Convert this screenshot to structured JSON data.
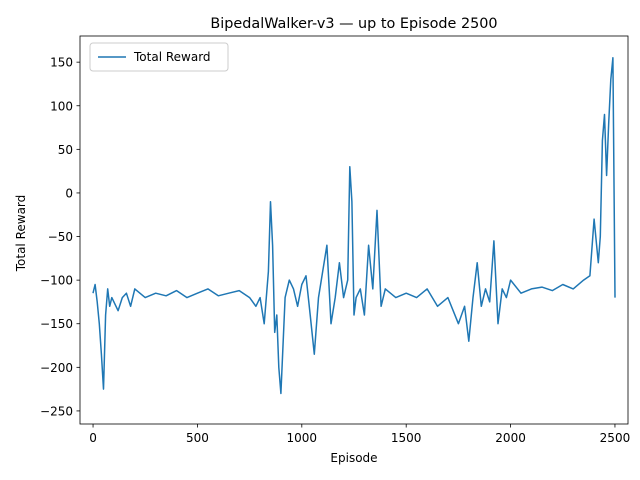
{
  "chart_data": {
    "type": "line",
    "title": "BipedalWalker-v3 — up to Episode 2500",
    "xlabel": "Episode",
    "ylabel": "Total Reward",
    "xlim": [
      -62.5,
      2562.5
    ],
    "ylim": [
      -265,
      180
    ],
    "xticks": [
      0,
      500,
      1000,
      1500,
      2000,
      2500
    ],
    "yticks": [
      -250,
      -200,
      -150,
      -100,
      -50,
      0,
      50,
      100,
      150
    ],
    "xtick_labels": [
      "0",
      "500",
      "1000",
      "1500",
      "2000",
      "2500"
    ],
    "ytick_labels": [
      "−250",
      "−200",
      "−150",
      "−100",
      "−50",
      "0",
      "50",
      "100",
      "150"
    ],
    "grid": false,
    "legend": "upper-left",
    "series": [
      {
        "name": "Total Reward",
        "color": "#1f77b4",
        "x": [
          0,
          10,
          20,
          30,
          40,
          50,
          60,
          70,
          80,
          90,
          100,
          120,
          140,
          160,
          180,
          200,
          250,
          300,
          350,
          400,
          450,
          500,
          550,
          600,
          650,
          700,
          750,
          780,
          800,
          820,
          840,
          850,
          860,
          870,
          880,
          890,
          900,
          920,
          940,
          960,
          980,
          1000,
          1020,
          1040,
          1060,
          1080,
          1100,
          1120,
          1140,
          1160,
          1180,
          1200,
          1220,
          1230,
          1240,
          1250,
          1260,
          1280,
          1300,
          1320,
          1340,
          1360,
          1380,
          1400,
          1450,
          1500,
          1550,
          1600,
          1650,
          1700,
          1750,
          1780,
          1800,
          1820,
          1840,
          1860,
          1880,
          1900,
          1920,
          1940,
          1960,
          1980,
          2000,
          2050,
          2100,
          2150,
          2200,
          2250,
          2300,
          2350,
          2380,
          2400,
          2420,
          2430,
          2440,
          2450,
          2460,
          2470,
          2480,
          2490,
          2500
        ],
        "y": [
          -115,
          -105,
          -125,
          -150,
          -185,
          -225,
          -140,
          -110,
          -130,
          -120,
          -125,
          -135,
          -120,
          -115,
          -130,
          -110,
          -120,
          -115,
          -118,
          -112,
          -120,
          -115,
          -110,
          -118,
          -115,
          -112,
          -120,
          -130,
          -120,
          -150,
          -90,
          -10,
          -60,
          -160,
          -140,
          -200,
          -230,
          -120,
          -100,
          -110,
          -130,
          -105,
          -95,
          -140,
          -185,
          -120,
          -90,
          -60,
          -150,
          -120,
          -80,
          -120,
          -100,
          30,
          -10,
          -140,
          -120,
          -110,
          -140,
          -60,
          -110,
          -20,
          -130,
          -110,
          -120,
          -115,
          -120,
          -110,
          -130,
          -120,
          -150,
          -130,
          -170,
          -120,
          -80,
          -130,
          -110,
          -125,
          -55,
          -150,
          -110,
          -120,
          -100,
          -115,
          -110,
          -108,
          -112,
          -105,
          -110,
          -100,
          -95,
          -30,
          -80,
          -50,
          60,
          90,
          20,
          80,
          130,
          155,
          -120
        ]
      }
    ]
  }
}
